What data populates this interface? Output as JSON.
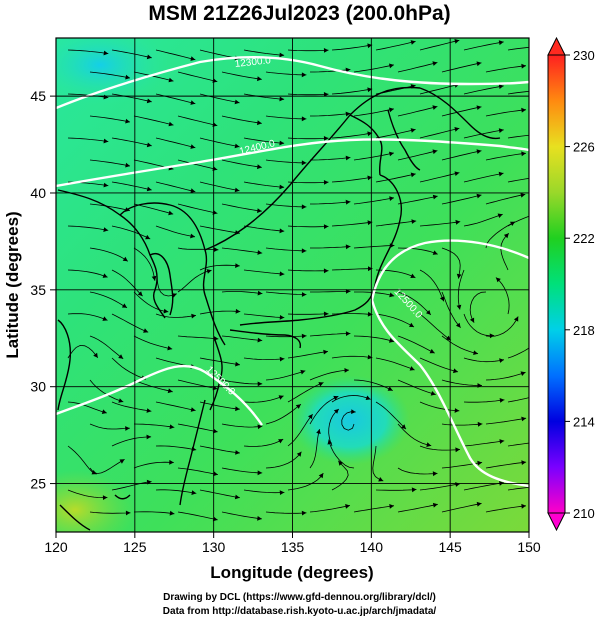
{
  "title": "MSM 21Z26Jul2023 (200.0hPa)",
  "x_axis": {
    "label": "Longitude (degrees)",
    "min": 120,
    "max": 150,
    "ticks": [
      120,
      125,
      130,
      135,
      140,
      145,
      150
    ]
  },
  "y_axis": {
    "label": "Latitude (degrees)",
    "min": 22.5,
    "max": 48,
    "ticks": [
      25,
      30,
      35,
      40,
      45
    ]
  },
  "colorbar": {
    "min": 210,
    "max": 230,
    "ticks": [
      210,
      214,
      218,
      222,
      226,
      230
    ]
  },
  "contours": [
    {
      "label": "12300.0",
      "lon": 132.5,
      "lat": 46.6,
      "angle": -6
    },
    {
      "label": "12400.0",
      "lon": 132.8,
      "lat": 42.2,
      "angle": -14
    },
    {
      "label": "12500.0",
      "lon": 142.2,
      "lat": 34.2,
      "angle": 48
    },
    {
      "label": "12500.0",
      "lon": 130.3,
      "lat": 30.2,
      "angle": 45
    }
  ],
  "credits": {
    "line1": "Drawing by DCL (https://www.gfd-dennou.org/library/dcl/)",
    "line2": "Data from http://database.rish.kyoto-u.ac.jp/arch/jmadata/"
  }
}
